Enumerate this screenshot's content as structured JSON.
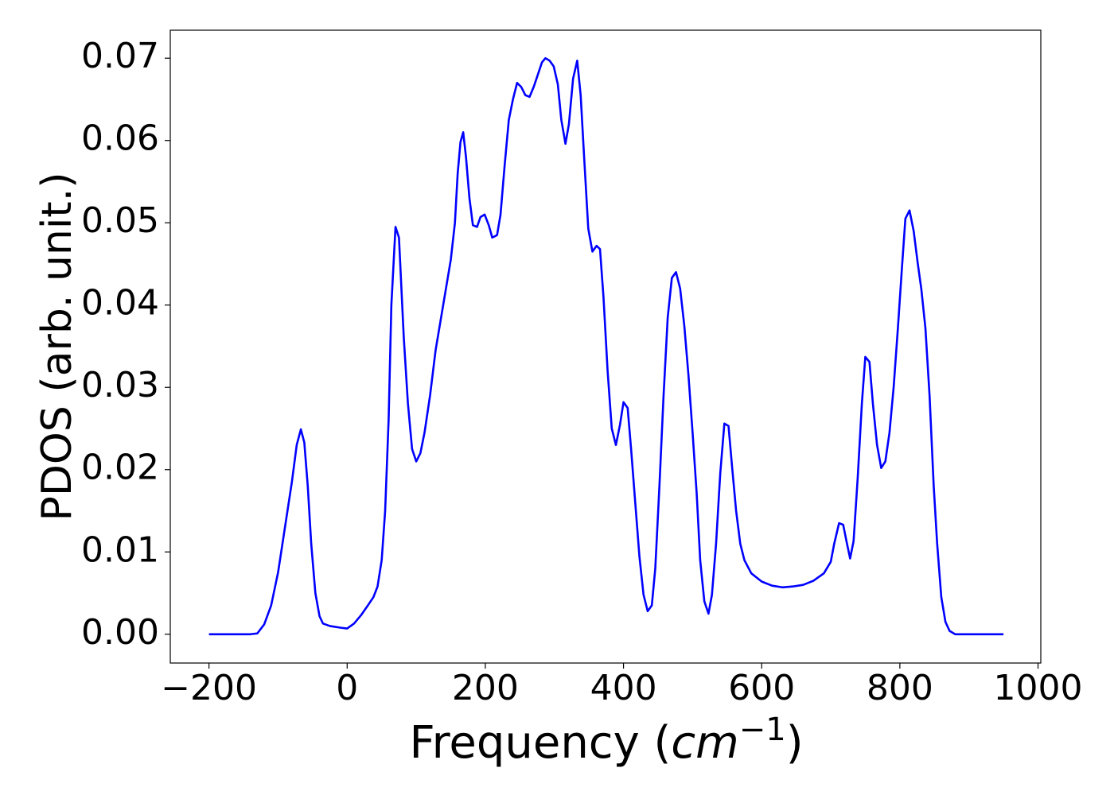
{
  "chart_data": {
    "type": "line",
    "x_label": [
      "Frequency (",
      "cm",
      "−1",
      ")"
    ],
    "y_label": "PDOS (arb. unit.)",
    "color": "#0000ff",
    "xlim": [
      -256,
      1004
    ],
    "ylim": [
      -0.0035,
      0.0734
    ],
    "xticks": [
      {
        "value": -200,
        "label": "−200"
      },
      0,
      200,
      400,
      600,
      800,
      1000
    ],
    "yticks": [
      {
        "value": 0,
        "label": "0.00"
      },
      {
        "value": 0.01,
        "label": "0.01"
      },
      {
        "value": 0.02,
        "label": "0.02"
      },
      {
        "value": 0.03,
        "label": "0.03"
      },
      {
        "value": 0.04,
        "label": "0.04"
      },
      {
        "value": 0.05,
        "label": "0.05"
      },
      {
        "value": 0.06,
        "label": "0.06"
      },
      {
        "value": 0.07,
        "label": "0.07"
      }
    ],
    "x": [
      -200,
      -180,
      -160,
      -140,
      -130,
      -120,
      -110,
      -100,
      -90,
      -80,
      -73,
      -67,
      -62,
      -57,
      -52,
      -46,
      -40,
      -35,
      -25,
      -10,
      0,
      10,
      20,
      30,
      38,
      44,
      50,
      55,
      60,
      64,
      70,
      75,
      82,
      88,
      94,
      100,
      106,
      112,
      120,
      128,
      135,
      142,
      150,
      156,
      160,
      164,
      168,
      172,
      177,
      182,
      188,
      193,
      199,
      205,
      210,
      217,
      222,
      228,
      234,
      240,
      246,
      252,
      258,
      264,
      270,
      276,
      282,
      287,
      293,
      299,
      305,
      310,
      316,
      321,
      327,
      333,
      338,
      343,
      349,
      355,
      361,
      366,
      371,
      377,
      383,
      389,
      395,
      400,
      406,
      411,
      417,
      423,
      429,
      435,
      441,
      446,
      452,
      458,
      464,
      470,
      476,
      482,
      488,
      494,
      500,
      506,
      511,
      517,
      523,
      528,
      534,
      540,
      546,
      552,
      557,
      563,
      569,
      575,
      585,
      600,
      615,
      630,
      645,
      660,
      675,
      690,
      700,
      705,
      712,
      718,
      723,
      728,
      733,
      739,
      745,
      750,
      756,
      761,
      767,
      773,
      779,
      785,
      791,
      797,
      803,
      808,
      814,
      820,
      826,
      831,
      837,
      843,
      849,
      854,
      860,
      866,
      872,
      880,
      900,
      920,
      950
    ],
    "values": [
      0,
      0,
      0,
      0,
      0.0001,
      0.0012,
      0.0035,
      0.0075,
      0.013,
      0.0185,
      0.023,
      0.0249,
      0.0233,
      0.018,
      0.011,
      0.005,
      0.0022,
      0.0013,
      0.001,
      0.0008,
      0.0007,
      0.0013,
      0.0023,
      0.0035,
      0.0045,
      0.0058,
      0.009,
      0.015,
      0.026,
      0.04,
      0.0495,
      0.0482,
      0.036,
      0.028,
      0.0225,
      0.021,
      0.022,
      0.0245,
      0.029,
      0.0345,
      0.038,
      0.0415,
      0.0455,
      0.05,
      0.056,
      0.0598,
      0.061,
      0.058,
      0.053,
      0.0497,
      0.0495,
      0.0507,
      0.051,
      0.0497,
      0.0482,
      0.0485,
      0.051,
      0.057,
      0.0625,
      0.065,
      0.067,
      0.0665,
      0.0655,
      0.0653,
      0.0665,
      0.068,
      0.0695,
      0.07,
      0.0697,
      0.069,
      0.0668,
      0.0625,
      0.0596,
      0.062,
      0.0675,
      0.0697,
      0.0655,
      0.058,
      0.0493,
      0.0465,
      0.0472,
      0.0468,
      0.041,
      0.032,
      0.025,
      0.023,
      0.0255,
      0.0282,
      0.0275,
      0.0225,
      0.016,
      0.0095,
      0.0048,
      0.0028,
      0.0035,
      0.008,
      0.018,
      0.029,
      0.0385,
      0.0433,
      0.044,
      0.042,
      0.0375,
      0.0315,
      0.0245,
      0.017,
      0.009,
      0.004,
      0.0025,
      0.0048,
      0.011,
      0.0195,
      0.0256,
      0.0253,
      0.0205,
      0.015,
      0.011,
      0.009,
      0.0074,
      0.0064,
      0.0059,
      0.0057,
      0.0058,
      0.006,
      0.0065,
      0.0074,
      0.0088,
      0.011,
      0.0135,
      0.0133,
      0.0112,
      0.0092,
      0.0113,
      0.019,
      0.028,
      0.0337,
      0.0331,
      0.028,
      0.023,
      0.0202,
      0.021,
      0.0245,
      0.03,
      0.037,
      0.0445,
      0.0505,
      0.0515,
      0.049,
      0.045,
      0.042,
      0.0372,
      0.029,
      0.018,
      0.011,
      0.0045,
      0.0015,
      0.0004,
      0,
      0,
      0,
      0
    ]
  }
}
